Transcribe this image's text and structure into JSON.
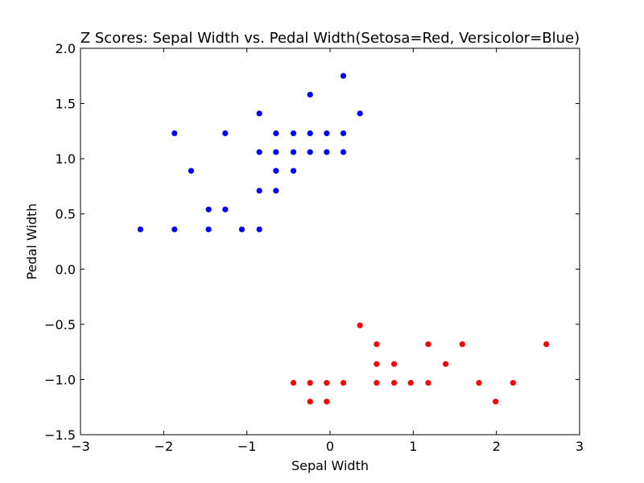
{
  "chart_data": {
    "type": "scatter",
    "title": "Z Scores: Sepal Width vs. Pedal Width(Setosa=Red, Versicolor=Blue)",
    "xlabel": "Sepal Width",
    "ylabel": "Pedal Width",
    "xlim": [
      -3,
      3
    ],
    "ylim": [
      -1.5,
      2.0
    ],
    "x_ticks": [
      -3,
      -2,
      -1,
      0,
      1,
      2,
      3
    ],
    "x_tick_labels": [
      "−3",
      "−2",
      "−1",
      "0",
      "1",
      "2",
      "3"
    ],
    "y_ticks": [
      -1.5,
      -1.0,
      -0.5,
      0.0,
      0.5,
      1.0,
      1.5,
      2.0
    ],
    "y_tick_labels": [
      "−1.5",
      "−1.0",
      "−0.5",
      "0.0",
      "0.5",
      "1.0",
      "1.5",
      "2.0"
    ],
    "grid": false,
    "series": [
      {
        "color": "#ff0000",
        "points": [
          [
            0.36,
            -0.51
          ],
          [
            0.56,
            -0.68
          ],
          [
            1.18,
            -0.68
          ],
          [
            1.59,
            -0.68
          ],
          [
            2.6,
            -0.68
          ],
          [
            0.56,
            -0.86
          ],
          [
            0.77,
            -0.86
          ],
          [
            1.39,
            -0.86
          ],
          [
            -0.44,
            -1.03
          ],
          [
            -0.24,
            -1.03
          ],
          [
            -0.04,
            -1.03
          ],
          [
            0.16,
            -1.03
          ],
          [
            0.56,
            -1.03
          ],
          [
            0.77,
            -1.03
          ],
          [
            0.97,
            -1.03
          ],
          [
            1.18,
            -1.03
          ],
          [
            1.79,
            -1.03
          ],
          [
            2.2,
            -1.03
          ],
          [
            -0.24,
            -1.2
          ],
          [
            -0.04,
            -1.2
          ],
          [
            1.99,
            -1.2
          ]
        ]
      },
      {
        "color": "#0000ff",
        "points": [
          [
            0.16,
            1.75
          ],
          [
            -0.24,
            1.58
          ],
          [
            -0.85,
            1.41
          ],
          [
            0.36,
            1.41
          ],
          [
            -1.87,
            1.23
          ],
          [
            -1.26,
            1.23
          ],
          [
            -0.65,
            1.23
          ],
          [
            -0.44,
            1.23
          ],
          [
            -0.24,
            1.23
          ],
          [
            -0.04,
            1.23
          ],
          [
            0.16,
            1.23
          ],
          [
            -0.85,
            1.06
          ],
          [
            -0.65,
            1.06
          ],
          [
            -0.44,
            1.06
          ],
          [
            -0.24,
            1.06
          ],
          [
            -0.04,
            1.06
          ],
          [
            0.16,
            1.06
          ],
          [
            -1.67,
            0.89
          ],
          [
            -0.65,
            0.89
          ],
          [
            -0.44,
            0.89
          ],
          [
            -0.85,
            0.71
          ],
          [
            -0.65,
            0.71
          ],
          [
            -1.46,
            0.54
          ],
          [
            -1.26,
            0.54
          ],
          [
            -2.28,
            0.36
          ],
          [
            -1.87,
            0.36
          ],
          [
            -1.46,
            0.36
          ],
          [
            -1.06,
            0.36
          ],
          [
            -0.85,
            0.36
          ]
        ]
      }
    ]
  }
}
